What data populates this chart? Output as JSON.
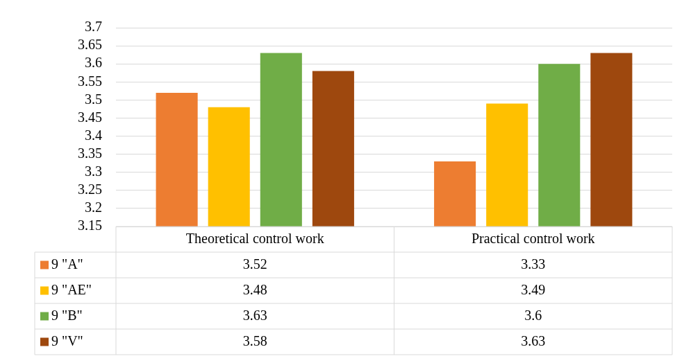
{
  "chart_data": {
    "type": "bar",
    "categories": [
      "Theoretical control work",
      "Practical control work"
    ],
    "series": [
      {
        "name": "9 \"A\"",
        "color": "#ed7d31",
        "values": [
          3.52,
          3.33
        ]
      },
      {
        "name": "9 \"AE\"",
        "color": "#ffc000",
        "values": [
          3.48,
          3.49
        ]
      },
      {
        "name": "9 \"B\"",
        "color": "#70ad47",
        "values": [
          3.63,
          3.6
        ]
      },
      {
        "name": "9 \"V\"",
        "color": "#9e480e",
        "values": [
          3.58,
          3.63
        ]
      }
    ],
    "ylim": [
      3.15,
      3.7
    ],
    "yticks": [
      3.15,
      3.2,
      3.25,
      3.3,
      3.35,
      3.4,
      3.45,
      3.5,
      3.55,
      3.6,
      3.65,
      3.7
    ],
    "grid": "y",
    "legend": "bottom",
    "data_labels": true
  }
}
